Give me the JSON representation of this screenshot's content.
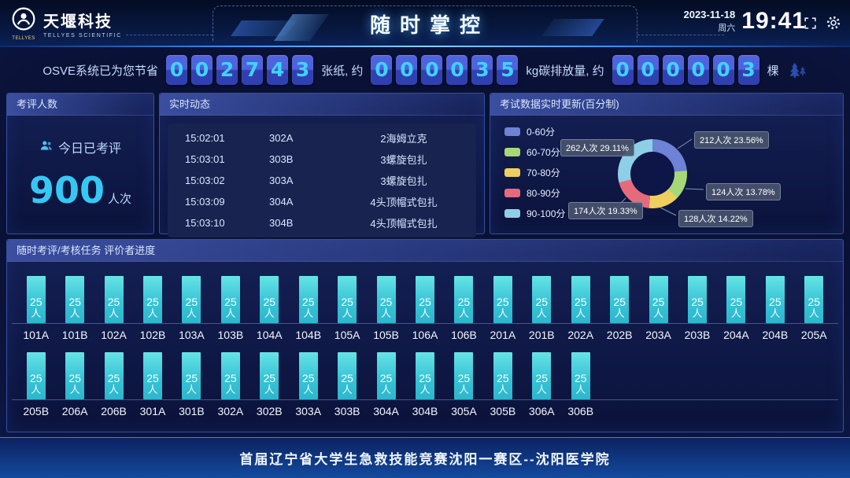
{
  "header": {
    "brand": "天堰科技",
    "brand_sub": "TELLYES SCIENTIFIC",
    "logo_badge": "TELLYES",
    "title": "随时掌控",
    "date": "2023-11-18",
    "weekday": "周六",
    "time": "19:41"
  },
  "stats": {
    "prefix": "OSVE系统已为您节省",
    "counters": [
      {
        "digits": [
          "0",
          "0",
          "2",
          "7",
          "4",
          "3"
        ],
        "suffix": "张纸, 约"
      },
      {
        "digits": [
          "0",
          "0",
          "0",
          "0",
          "3",
          "5"
        ],
        "suffix": "kg碳排放量, 约"
      },
      {
        "digits": [
          "0",
          "0",
          "0",
          "0",
          "0",
          "3"
        ],
        "suffix": "棵"
      }
    ]
  },
  "panels": {
    "count": {
      "title": "考评人数",
      "label": "今日已考评",
      "value": "900",
      "unit": "人次"
    },
    "live": {
      "title": "实时动态",
      "rows": [
        {
          "time": "15:02:01",
          "room": "302A",
          "item": "2海姆立克"
        },
        {
          "time": "15:03:01",
          "room": "303B",
          "item": "3螺旋包扎"
        },
        {
          "time": "15:03:02",
          "room": "303A",
          "item": "3螺旋包扎"
        },
        {
          "time": "15:03:09",
          "room": "304A",
          "item": "4头顶帽式包扎"
        },
        {
          "time": "15:03:10",
          "room": "304B",
          "item": "4头顶帽式包扎"
        }
      ]
    },
    "exam": {
      "title": "考试数据实时更新(百分制)"
    },
    "progress": {
      "title": "随时考评/考核任务 评价者进度",
      "bar_count": "25",
      "bar_unit": "人",
      "rows": [
        [
          "101A",
          "101B",
          "102A",
          "102B",
          "103A",
          "103B",
          "104A",
          "104B",
          "105A",
          "105B",
          "106A",
          "106B",
          "201A",
          "201B",
          "202A",
          "202B",
          "203A",
          "203B",
          "204A",
          "204B",
          "205A"
        ],
        [
          "205B",
          "206A",
          "206B",
          "301A",
          "301B",
          "302A",
          "302B",
          "303A",
          "303B",
          "304A",
          "304B",
          "305A",
          "305B",
          "306A",
          "306B"
        ]
      ]
    }
  },
  "chart_data": {
    "type": "pie",
    "title": "考试数据实时更新(百分制)",
    "donut": true,
    "legend_position": "left",
    "total": 900,
    "unit": "人次",
    "segments": [
      {
        "label": "0-60分",
        "count": 212,
        "percent": 23.56,
        "color": "#6e82d6",
        "callout": "212人次 23.56%"
      },
      {
        "label": "60-70分",
        "count": 124,
        "percent": 13.78,
        "color": "#a6d878",
        "callout": "124人次 13.78%"
      },
      {
        "label": "70-80分",
        "count": 128,
        "percent": 14.22,
        "color": "#eccf5e",
        "callout": "128人次 14.22%"
      },
      {
        "label": "80-90分",
        "count": 174,
        "percent": 19.33,
        "color": "#e56b7c",
        "callout": "174人次 19.33%"
      },
      {
        "label": "90-100分",
        "count": 262,
        "percent": 29.11,
        "color": "#8ecfe8",
        "callout": "262人次 29.11%"
      }
    ]
  },
  "footer": {
    "text": "首届辽宁省大学生急救技能竞赛沈阳一赛区--沈阳医学院"
  },
  "colors": {
    "accent_cyan": "#3fd0ff",
    "bar_teal": "#38c4d6",
    "digit_box": "#3a4cc4"
  }
}
